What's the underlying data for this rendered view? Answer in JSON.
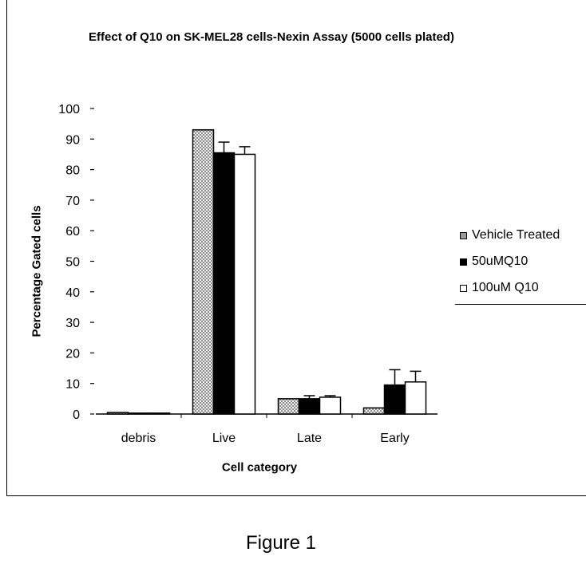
{
  "chart_data": {
    "type": "bar",
    "title": "Effect of Q10 on SK-MEL28 cells-Nexin Assay (5000 cells plated)",
    "xlabel": "Cell category",
    "ylabel": "Percentage Gated cells",
    "ylim": [
      0,
      100
    ],
    "yticks": [
      "0",
      "10",
      "20",
      "30",
      "40",
      "50",
      "60",
      "70",
      "80",
      "90",
      "100"
    ],
    "categories": [
      "debris",
      "Live",
      "Late",
      "Early"
    ],
    "series": [
      {
        "name": "Vehicle Treated",
        "values": [
          0.5,
          93,
          5,
          2
        ],
        "errors": [
          0,
          0,
          0,
          0
        ],
        "fill": "#9a9a9a"
      },
      {
        "name": "50uMQ10",
        "values": [
          0.3,
          85.5,
          5,
          9.5
        ],
        "errors": [
          0,
          3.5,
          1,
          5
        ],
        "fill": "#000000"
      },
      {
        "name": "100uM Q10",
        "values": [
          0.3,
          85,
          5.5,
          10.5
        ],
        "errors": [
          0,
          2.5,
          0.5,
          3.5
        ],
        "fill": "#ffffff"
      }
    ],
    "legend_position": "right",
    "grid": false
  },
  "caption": "Figure 1"
}
